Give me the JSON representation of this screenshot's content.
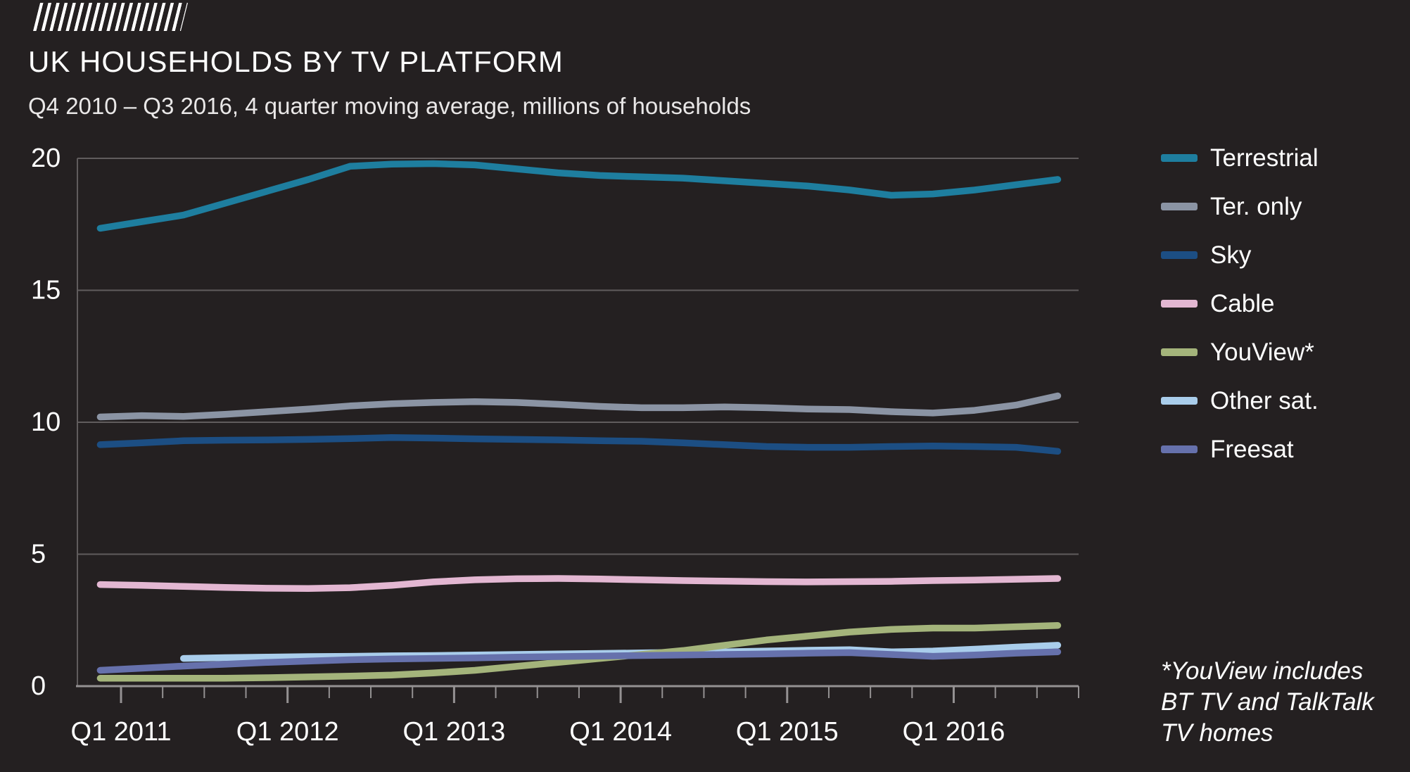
{
  "page": {
    "background": "#242021"
  },
  "header": {
    "title": "UK HOUSEHOLDS BY TV PLATFORM",
    "subtitle": "Q4 2010 – Q3 2016, 4 quarter moving average, millions of households"
  },
  "legend": {
    "items": [
      {
        "label": "Terrestrial",
        "color": "#1e7e9f"
      },
      {
        "label": "Ter. only",
        "color": "#8b94a4"
      },
      {
        "label": "Sky",
        "color": "#1c4e83"
      },
      {
        "label": "Cable",
        "color": "#e3b7d2"
      },
      {
        "label": "YouView*",
        "color": "#a4b47b"
      },
      {
        "label": "Other sat.",
        "color": "#a9cdeb"
      },
      {
        "label": "Freesat",
        "color": "#6671ac"
      }
    ]
  },
  "footnote": {
    "lines": [
      "*YouView includes",
      "BT TV and TalkTalk",
      "TV homes"
    ]
  },
  "chart_data": {
    "type": "line",
    "title": "UK HOUSEHOLDS BY TV PLATFORM",
    "subtitle": "Q4 2010 – Q3 2016, 4 quarter moving average, millions of households",
    "ylabel": "millions of households",
    "ylim": [
      0,
      20
    ],
    "yticks": [
      0,
      5,
      10,
      15,
      20
    ],
    "grid": "horizontal",
    "legend_position": "right",
    "x": [
      "Q4 2010",
      "Q1 2011",
      "Q2 2011",
      "Q3 2011",
      "Q4 2011",
      "Q1 2012",
      "Q2 2012",
      "Q3 2012",
      "Q4 2012",
      "Q1 2013",
      "Q2 2013",
      "Q3 2013",
      "Q4 2013",
      "Q1 2014",
      "Q2 2014",
      "Q3 2014",
      "Q4 2014",
      "Q1 2015",
      "Q2 2015",
      "Q3 2015",
      "Q4 2015",
      "Q1 2016",
      "Q2 2016",
      "Q3 2016"
    ],
    "x_tick_labels": [
      "Q1 2011",
      "Q1 2012",
      "Q1 2013",
      "Q1 2014",
      "Q1 2015",
      "Q1 2016"
    ],
    "series": [
      {
        "name": "Terrestrial",
        "color": "#1e7e9f",
        "values": [
          17.35,
          17.6,
          17.85,
          18.3,
          18.75,
          19.2,
          19.7,
          19.78,
          19.8,
          19.75,
          19.6,
          19.45,
          19.35,
          19.3,
          19.25,
          19.15,
          19.05,
          18.95,
          18.8,
          18.6,
          18.65,
          18.8,
          19.0,
          19.2
        ]
      },
      {
        "name": "Ter. only",
        "color": "#8b94a4",
        "values": [
          10.2,
          10.25,
          10.22,
          10.3,
          10.4,
          10.5,
          10.62,
          10.7,
          10.75,
          10.78,
          10.75,
          10.68,
          10.6,
          10.55,
          10.55,
          10.58,
          10.55,
          10.5,
          10.48,
          10.4,
          10.35,
          10.45,
          10.65,
          11.0
        ]
      },
      {
        "name": "Sky",
        "color": "#1c4e83",
        "values": [
          9.15,
          9.22,
          9.3,
          9.32,
          9.33,
          9.35,
          9.38,
          9.42,
          9.4,
          9.37,
          9.35,
          9.33,
          9.3,
          9.28,
          9.22,
          9.15,
          9.08,
          9.05,
          9.05,
          9.08,
          9.1,
          9.08,
          9.05,
          8.9
        ]
      },
      {
        "name": "Cable",
        "color": "#e3b7d2",
        "values": [
          3.85,
          3.82,
          3.78,
          3.74,
          3.71,
          3.7,
          3.73,
          3.82,
          3.95,
          4.03,
          4.07,
          4.08,
          4.06,
          4.03,
          4.0,
          3.98,
          3.96,
          3.95,
          3.96,
          3.97,
          4.0,
          4.02,
          4.05,
          4.08
        ]
      },
      {
        "name": "YouView*",
        "color": "#a4b47b",
        "values": [
          0.3,
          0.3,
          0.3,
          0.3,
          0.32,
          0.35,
          0.38,
          0.42,
          0.5,
          0.6,
          0.75,
          0.9,
          1.05,
          1.2,
          1.35,
          1.55,
          1.75,
          1.9,
          2.05,
          2.15,
          2.2,
          2.2,
          2.25,
          2.3
        ]
      },
      {
        "name": "Other sat.",
        "color": "#a9cdeb",
        "values": [
          null,
          null,
          1.05,
          1.08,
          1.1,
          1.12,
          1.13,
          1.15,
          1.16,
          1.18,
          1.2,
          1.22,
          1.24,
          1.26,
          1.28,
          1.3,
          1.33,
          1.36,
          1.38,
          1.3,
          1.33,
          1.4,
          1.48,
          1.55
        ]
      },
      {
        "name": "Freesat",
        "color": "#6671ac",
        "values": [
          0.6,
          0.68,
          0.76,
          0.83,
          0.9,
          0.95,
          1.0,
          1.03,
          1.05,
          1.07,
          1.1,
          1.12,
          1.14,
          1.16,
          1.18,
          1.2,
          1.22,
          1.25,
          1.27,
          1.2,
          1.13,
          1.18,
          1.25,
          1.3
        ]
      }
    ]
  }
}
